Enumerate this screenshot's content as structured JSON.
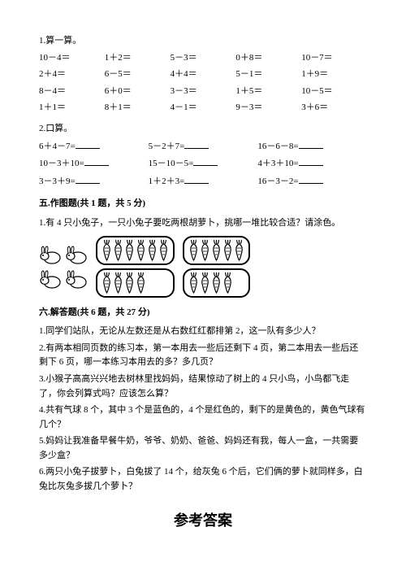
{
  "q1": {
    "title": "1.算一算。",
    "rows": [
      [
        "10－4＝",
        "1＋2＝",
        "5－3＝",
        "0＋8＝",
        "10－7＝"
      ],
      [
        "2＋4＝",
        "6－5＝",
        "4＋4＝",
        "5－1＝",
        "1＋9＝"
      ],
      [
        "8－4＝",
        "6＋0＝",
        "3－3＝",
        "1＋5＝",
        "10－5＝"
      ],
      [
        "1＋1＝",
        "8＋1＝",
        "4－1＝",
        "9－3＝",
        "3＋6＝"
      ]
    ]
  },
  "q2": {
    "title": "2.口算。",
    "rows": [
      [
        "6＋4－7=",
        "5－2＋7=",
        "16－6－8="
      ],
      [
        "10－3＋10=",
        "15－10－5=",
        "4＋3＋10="
      ],
      [
        "3－3＋9=",
        "1＋2＋3=",
        "16－3－2="
      ]
    ]
  },
  "sec5": {
    "title": "五.作图题(共 1 题，共 5 分)",
    "q": "1.有 4 只小兔子，一只小兔子要吃两根胡萝卜，挑哪一堆比较合适？请涂色。",
    "carrot_counts": [
      6,
      5,
      4,
      4
    ]
  },
  "sec6": {
    "title": "六.解答题(共 6 题，共 27 分)",
    "items": [
      "1.同学们站队，无论从左数还是从右数红红都排第 2，这一队有多少人？",
      "2.有两本相同页数的练习本，第一本用去一些后还剩下 4 页，第二本用去一些后还剩下 6 页，哪一本练习本用去的多？多几页？",
      "3.小猴子高高兴兴地去树林里找妈妈，结果惊动了树上的 4 只小鸟，小鸟都飞走了，你会列算式吗？应该怎么算？",
      "4.共有气球 8 个，其中 3 个是蓝色的，4 个是红色的，剩下的是黄色的，黄色气球有几个？",
      "5.妈妈让我准备早餐牛奶，爷爷、奶奶、爸爸、妈妈还有我，每人一盒，一共需要多少盒？",
      "6.两只小兔子拔萝卜，白兔拔了 14 个，给灰兔 6 个后，它们俩的萝卜就同样多，白兔比灰兔多拔几个萝卜？"
    ]
  },
  "answer": "参考答案",
  "colors": {
    "text": "#000",
    "bg": "#fff",
    "border": "#000"
  }
}
